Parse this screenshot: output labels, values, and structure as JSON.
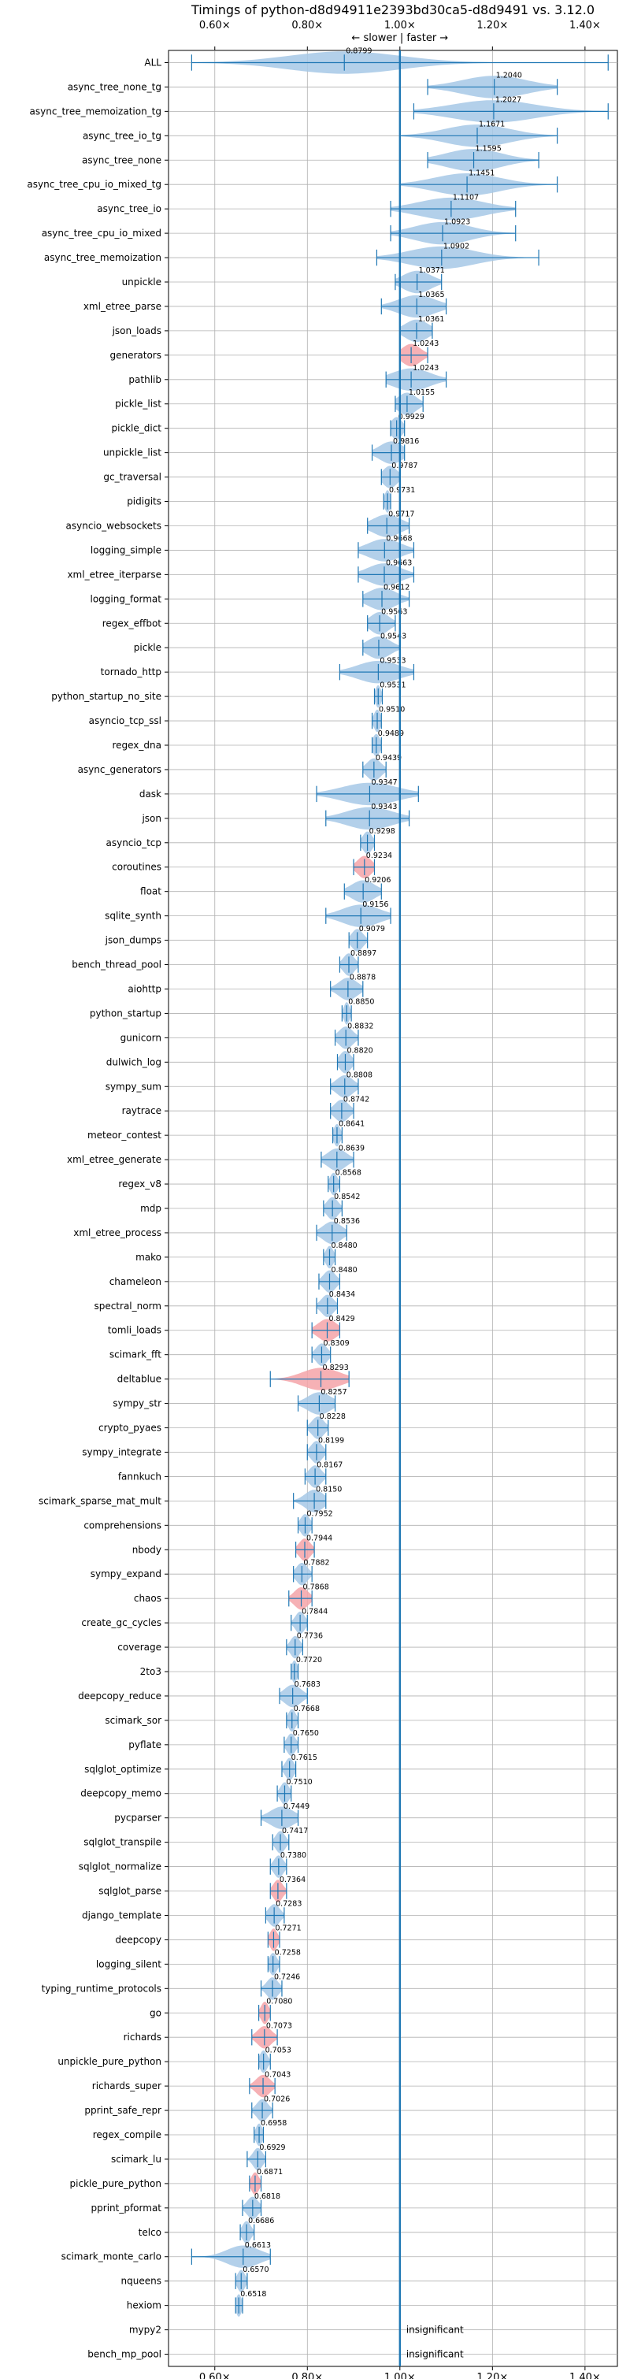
{
  "chart_data": {
    "type": "violin",
    "title": "Timings of python-d8d94911e2393bd30ca5-d8d9491 vs. 3.12.0",
    "annotation": "← slower | faster →",
    "xlim": [
      0.5,
      1.47
    ],
    "x_ticks": [
      0.6,
      0.8,
      1.0,
      1.2,
      1.4
    ],
    "x_tick_labels": [
      "0.60×",
      "0.80×",
      "1.00×",
      "1.20×",
      "1.40×"
    ],
    "reference_line": 1.0,
    "colors": {
      "normal": "#1f77b4",
      "violin_fill": "#a6c8e6",
      "significant_slow": "#f4a3a8",
      "reference": "#1f77b4",
      "grid": "#b0b0b0"
    },
    "benchmarks": [
      {
        "name": "ALL",
        "value": 0.8799,
        "min": 0.55,
        "max": 1.45,
        "spread": 0.12,
        "label": "0.8799"
      },
      {
        "name": "async_tree_none_tg",
        "value": 1.204,
        "min": 1.06,
        "max": 1.34,
        "spread": 0.07,
        "label": "1.2040"
      },
      {
        "name": "async_tree_memoization_tg",
        "value": 1.2027,
        "min": 1.03,
        "max": 1.45,
        "spread": 0.09,
        "label": "1.2027"
      },
      {
        "name": "async_tree_io_tg",
        "value": 1.1671,
        "min": 1.0,
        "max": 1.34,
        "spread": 0.07,
        "label": "1.1671"
      },
      {
        "name": "async_tree_none",
        "value": 1.1595,
        "min": 1.06,
        "max": 1.3,
        "spread": 0.06,
        "label": "1.1595"
      },
      {
        "name": "async_tree_cpu_io_mixed_tg",
        "value": 1.1451,
        "min": 1.0,
        "max": 1.34,
        "spread": 0.07,
        "label": "1.1451"
      },
      {
        "name": "async_tree_io",
        "value": 1.1107,
        "min": 0.98,
        "max": 1.25,
        "spread": 0.07,
        "label": "1.1107"
      },
      {
        "name": "async_tree_cpu_io_mixed",
        "value": 1.0923,
        "min": 0.98,
        "max": 1.25,
        "spread": 0.06,
        "label": "1.0923"
      },
      {
        "name": "async_tree_memoization",
        "value": 1.0902,
        "min": 0.95,
        "max": 1.3,
        "spread": 0.07,
        "label": "1.0902"
      },
      {
        "name": "unpickle",
        "value": 1.0371,
        "min": 0.99,
        "max": 1.09,
        "spread": 0.03,
        "label": "1.0371"
      },
      {
        "name": "xml_etree_parse",
        "value": 1.0365,
        "min": 0.96,
        "max": 1.1,
        "spread": 0.04,
        "label": "1.0365"
      },
      {
        "name": "json_loads",
        "value": 1.0361,
        "min": 1.0,
        "max": 1.07,
        "spread": 0.025,
        "label": "1.0361"
      },
      {
        "name": "generators",
        "value": 1.0243,
        "min": 1.0,
        "max": 1.06,
        "spread": 0.02,
        "label": "1.0243",
        "sig": "slow"
      },
      {
        "name": "pathlib",
        "value": 1.0243,
        "min": 0.97,
        "max": 1.1,
        "spread": 0.04,
        "label": "1.0243"
      },
      {
        "name": "pickle_list",
        "value": 1.0155,
        "min": 0.99,
        "max": 1.05,
        "spread": 0.02,
        "label": "1.0155"
      },
      {
        "name": "pickle_dict",
        "value": 0.9929,
        "min": 0.98,
        "max": 1.01,
        "spread": 0.012,
        "label": "0.9929"
      },
      {
        "name": "unpickle_list",
        "value": 0.9816,
        "min": 0.94,
        "max": 1.01,
        "spread": 0.025,
        "label": "0.9816"
      },
      {
        "name": "gc_traversal",
        "value": 0.9787,
        "min": 0.96,
        "max": 1.0,
        "spread": 0.015,
        "label": "0.9787"
      },
      {
        "name": "pidigits",
        "value": 0.9731,
        "min": 0.965,
        "max": 0.98,
        "spread": 0.006,
        "label": "0.9731"
      },
      {
        "name": "asyncio_websockets",
        "value": 0.9717,
        "min": 0.93,
        "max": 1.02,
        "spread": 0.03,
        "label": "0.9717"
      },
      {
        "name": "logging_simple",
        "value": 0.9668,
        "min": 0.91,
        "max": 1.03,
        "spread": 0.035,
        "label": "0.9668"
      },
      {
        "name": "xml_etree_iterparse",
        "value": 0.9663,
        "min": 0.91,
        "max": 1.03,
        "spread": 0.035,
        "label": "0.9663"
      },
      {
        "name": "logging_format",
        "value": 0.9612,
        "min": 0.92,
        "max": 1.02,
        "spread": 0.03,
        "label": "0.9612"
      },
      {
        "name": "regex_effbot",
        "value": 0.9563,
        "min": 0.93,
        "max": 0.99,
        "spread": 0.02,
        "label": "0.9563"
      },
      {
        "name": "pickle",
        "value": 0.9543,
        "min": 0.92,
        "max": 1.0,
        "spread": 0.025,
        "label": "0.9543"
      },
      {
        "name": "tornado_http",
        "value": 0.9533,
        "min": 0.87,
        "max": 1.03,
        "spread": 0.045,
        "label": "0.9533"
      },
      {
        "name": "python_startup_no_site",
        "value": 0.9531,
        "min": 0.945,
        "max": 0.962,
        "spread": 0.006,
        "label": "0.9531"
      },
      {
        "name": "asyncio_tcp_ssl",
        "value": 0.951,
        "min": 0.94,
        "max": 0.96,
        "spread": 0.007,
        "label": "0.9510"
      },
      {
        "name": "regex_dna",
        "value": 0.9489,
        "min": 0.94,
        "max": 0.96,
        "spread": 0.008,
        "label": "0.9489"
      },
      {
        "name": "async_generators",
        "value": 0.9439,
        "min": 0.92,
        "max": 0.97,
        "spread": 0.015,
        "label": "0.9439"
      },
      {
        "name": "dask",
        "value": 0.9347,
        "min": 0.82,
        "max": 1.04,
        "spread": 0.06,
        "label": "0.9347"
      },
      {
        "name": "json",
        "value": 0.9343,
        "min": 0.84,
        "max": 1.02,
        "spread": 0.05,
        "label": "0.9343"
      },
      {
        "name": "asyncio_tcp",
        "value": 0.9298,
        "min": 0.915,
        "max": 0.945,
        "spread": 0.01,
        "label": "0.9298"
      },
      {
        "name": "coroutines",
        "value": 0.9234,
        "min": 0.9,
        "max": 0.945,
        "spread": 0.015,
        "label": "0.9234",
        "sig": "slow"
      },
      {
        "name": "float",
        "value": 0.9206,
        "min": 0.88,
        "max": 0.96,
        "spread": 0.025,
        "label": "0.9206"
      },
      {
        "name": "sqlite_synth",
        "value": 0.9156,
        "min": 0.84,
        "max": 0.98,
        "spread": 0.04,
        "label": "0.9156"
      },
      {
        "name": "json_dumps",
        "value": 0.9079,
        "min": 0.89,
        "max": 0.93,
        "spread": 0.012,
        "label": "0.9079"
      },
      {
        "name": "bench_thread_pool",
        "value": 0.8897,
        "min": 0.87,
        "max": 0.91,
        "spread": 0.012,
        "label": "0.8897"
      },
      {
        "name": "aiohttp",
        "value": 0.8878,
        "min": 0.85,
        "max": 0.92,
        "spread": 0.02,
        "label": "0.8878"
      },
      {
        "name": "python_startup",
        "value": 0.885,
        "min": 0.875,
        "max": 0.895,
        "spread": 0.006,
        "label": "0.8850"
      },
      {
        "name": "gunicorn",
        "value": 0.8832,
        "min": 0.86,
        "max": 0.91,
        "spread": 0.015,
        "label": "0.8832"
      },
      {
        "name": "dulwich_log",
        "value": 0.882,
        "min": 0.865,
        "max": 0.9,
        "spread": 0.012,
        "label": "0.8820"
      },
      {
        "name": "sympy_sum",
        "value": 0.8808,
        "min": 0.85,
        "max": 0.91,
        "spread": 0.018,
        "label": "0.8808"
      },
      {
        "name": "raytrace",
        "value": 0.8742,
        "min": 0.85,
        "max": 0.9,
        "spread": 0.015,
        "label": "0.8742"
      },
      {
        "name": "meteor_contest",
        "value": 0.8641,
        "min": 0.855,
        "max": 0.875,
        "spread": 0.007,
        "label": "0.8641"
      },
      {
        "name": "xml_etree_generate",
        "value": 0.8639,
        "min": 0.83,
        "max": 0.9,
        "spread": 0.02,
        "label": "0.8639"
      },
      {
        "name": "regex_v8",
        "value": 0.8568,
        "min": 0.845,
        "max": 0.87,
        "spread": 0.008,
        "label": "0.8568"
      },
      {
        "name": "mdp",
        "value": 0.8542,
        "min": 0.835,
        "max": 0.875,
        "spread": 0.012,
        "label": "0.8542"
      },
      {
        "name": "xml_etree_process",
        "value": 0.8536,
        "min": 0.82,
        "max": 0.885,
        "spread": 0.02,
        "label": "0.8536"
      },
      {
        "name": "mako",
        "value": 0.848,
        "min": 0.835,
        "max": 0.86,
        "spread": 0.008,
        "label": "0.8480"
      },
      {
        "name": "chameleon",
        "value": 0.848,
        "min": 0.825,
        "max": 0.87,
        "spread": 0.013,
        "label": "0.8480"
      },
      {
        "name": "spectral_norm",
        "value": 0.8434,
        "min": 0.82,
        "max": 0.865,
        "spread": 0.013,
        "label": "0.8434"
      },
      {
        "name": "tomli_loads",
        "value": 0.8429,
        "min": 0.81,
        "max": 0.87,
        "spread": 0.02,
        "label": "0.8429",
        "sig": "slow"
      },
      {
        "name": "scimark_fft",
        "value": 0.8309,
        "min": 0.81,
        "max": 0.85,
        "spread": 0.012,
        "label": "0.8309"
      },
      {
        "name": "deltablue",
        "value": 0.8293,
        "min": 0.72,
        "max": 0.89,
        "spread": 0.04,
        "label": "0.8293",
        "sig": "slow"
      },
      {
        "name": "sympy_str",
        "value": 0.8257,
        "min": 0.78,
        "max": 0.86,
        "spread": 0.025,
        "label": "0.8257"
      },
      {
        "name": "crypto_pyaes",
        "value": 0.8228,
        "min": 0.8,
        "max": 0.845,
        "spread": 0.013,
        "label": "0.8228"
      },
      {
        "name": "sympy_integrate",
        "value": 0.8199,
        "min": 0.8,
        "max": 0.84,
        "spread": 0.012,
        "label": "0.8199"
      },
      {
        "name": "fannkuch",
        "value": 0.8167,
        "min": 0.795,
        "max": 0.84,
        "spread": 0.013,
        "label": "0.8167"
      },
      {
        "name": "scimark_sparse_mat_mult",
        "value": 0.815,
        "min": 0.77,
        "max": 0.84,
        "spread": 0.02,
        "label": "0.8150"
      },
      {
        "name": "comprehensions",
        "value": 0.7952,
        "min": 0.78,
        "max": 0.81,
        "spread": 0.01,
        "label": "0.7952"
      },
      {
        "name": "nbody",
        "value": 0.7944,
        "min": 0.775,
        "max": 0.815,
        "spread": 0.012,
        "label": "0.7944",
        "sig": "slow"
      },
      {
        "name": "sympy_expand",
        "value": 0.7882,
        "min": 0.77,
        "max": 0.81,
        "spread": 0.012,
        "label": "0.7882"
      },
      {
        "name": "chaos",
        "value": 0.7868,
        "min": 0.76,
        "max": 0.81,
        "spread": 0.015,
        "label": "0.7868",
        "sig": "slow"
      },
      {
        "name": "create_gc_cycles",
        "value": 0.7844,
        "min": 0.765,
        "max": 0.8,
        "spread": 0.01,
        "label": "0.7844"
      },
      {
        "name": "coverage",
        "value": 0.7736,
        "min": 0.755,
        "max": 0.79,
        "spread": 0.01,
        "label": "0.7736"
      },
      {
        "name": "2to3",
        "value": 0.772,
        "min": 0.765,
        "max": 0.78,
        "spread": 0.006,
        "label": "0.7720"
      },
      {
        "name": "deepcopy_reduce",
        "value": 0.7683,
        "min": 0.74,
        "max": 0.8,
        "spread": 0.018,
        "label": "0.7683"
      },
      {
        "name": "scimark_sor",
        "value": 0.7668,
        "min": 0.755,
        "max": 0.78,
        "spread": 0.008,
        "label": "0.7668"
      },
      {
        "name": "pyflate",
        "value": 0.765,
        "min": 0.75,
        "max": 0.78,
        "spread": 0.009,
        "label": "0.7650"
      },
      {
        "name": "sqlglot_optimize",
        "value": 0.7615,
        "min": 0.745,
        "max": 0.775,
        "spread": 0.009,
        "label": "0.7615"
      },
      {
        "name": "deepcopy_memo",
        "value": 0.751,
        "min": 0.735,
        "max": 0.765,
        "spread": 0.009,
        "label": "0.7510"
      },
      {
        "name": "pycparser",
        "value": 0.7449,
        "min": 0.7,
        "max": 0.78,
        "spread": 0.025,
        "label": "0.7449"
      },
      {
        "name": "sqlglot_transpile",
        "value": 0.7417,
        "min": 0.725,
        "max": 0.76,
        "spread": 0.01,
        "label": "0.7417"
      },
      {
        "name": "sqlglot_normalize",
        "value": 0.738,
        "min": 0.72,
        "max": 0.755,
        "spread": 0.01,
        "label": "0.7380"
      },
      {
        "name": "sqlglot_parse",
        "value": 0.7364,
        "min": 0.72,
        "max": 0.755,
        "spread": 0.01,
        "label": "0.7364",
        "sig": "slow"
      },
      {
        "name": "django_template",
        "value": 0.7283,
        "min": 0.71,
        "max": 0.75,
        "spread": 0.012,
        "label": "0.7283"
      },
      {
        "name": "deepcopy",
        "value": 0.7271,
        "min": 0.715,
        "max": 0.74,
        "spread": 0.008,
        "label": "0.7271",
        "sig": "slow"
      },
      {
        "name": "logging_silent",
        "value": 0.7258,
        "min": 0.715,
        "max": 0.74,
        "spread": 0.008,
        "label": "0.7258"
      },
      {
        "name": "typing_runtime_protocols",
        "value": 0.7246,
        "min": 0.7,
        "max": 0.745,
        "spread": 0.012,
        "label": "0.7246"
      },
      {
        "name": "go",
        "value": 0.708,
        "min": 0.695,
        "max": 0.72,
        "spread": 0.008,
        "label": "0.7080",
        "sig": "slow"
      },
      {
        "name": "richards",
        "value": 0.7073,
        "min": 0.68,
        "max": 0.735,
        "spread": 0.015,
        "label": "0.7073",
        "sig": "slow"
      },
      {
        "name": "unpickle_pure_python",
        "value": 0.7053,
        "min": 0.695,
        "max": 0.72,
        "spread": 0.008,
        "label": "0.7053"
      },
      {
        "name": "richards_super",
        "value": 0.7043,
        "min": 0.675,
        "max": 0.73,
        "spread": 0.015,
        "label": "0.7043",
        "sig": "slow"
      },
      {
        "name": "pprint_safe_repr",
        "value": 0.7026,
        "min": 0.68,
        "max": 0.725,
        "spread": 0.012,
        "label": "0.7026"
      },
      {
        "name": "regex_compile",
        "value": 0.6958,
        "min": 0.685,
        "max": 0.705,
        "spread": 0.007,
        "label": "0.6958"
      },
      {
        "name": "scimark_lu",
        "value": 0.6929,
        "min": 0.67,
        "max": 0.71,
        "spread": 0.01,
        "label": "0.6929"
      },
      {
        "name": "pickle_pure_python",
        "value": 0.6871,
        "min": 0.675,
        "max": 0.7,
        "spread": 0.008,
        "label": "0.6871",
        "sig": "slow"
      },
      {
        "name": "pprint_pformat",
        "value": 0.6818,
        "min": 0.66,
        "max": 0.7,
        "spread": 0.012,
        "label": "0.6818"
      },
      {
        "name": "telco",
        "value": 0.6686,
        "min": 0.655,
        "max": 0.685,
        "spread": 0.009,
        "label": "0.6686"
      },
      {
        "name": "scimark_monte_carlo",
        "value": 0.6613,
        "min": 0.55,
        "max": 0.72,
        "spread": 0.035,
        "label": "0.6613"
      },
      {
        "name": "nqueens",
        "value": 0.657,
        "min": 0.645,
        "max": 0.67,
        "spread": 0.008,
        "label": "0.6570"
      },
      {
        "name": "hexiom",
        "value": 0.6518,
        "min": 0.645,
        "max": 0.66,
        "spread": 0.006,
        "label": "0.6518"
      },
      {
        "name": "mypy2",
        "value": null,
        "label": "insignificant"
      },
      {
        "name": "bench_mp_pool",
        "value": null,
        "label": "insignificant"
      }
    ]
  }
}
